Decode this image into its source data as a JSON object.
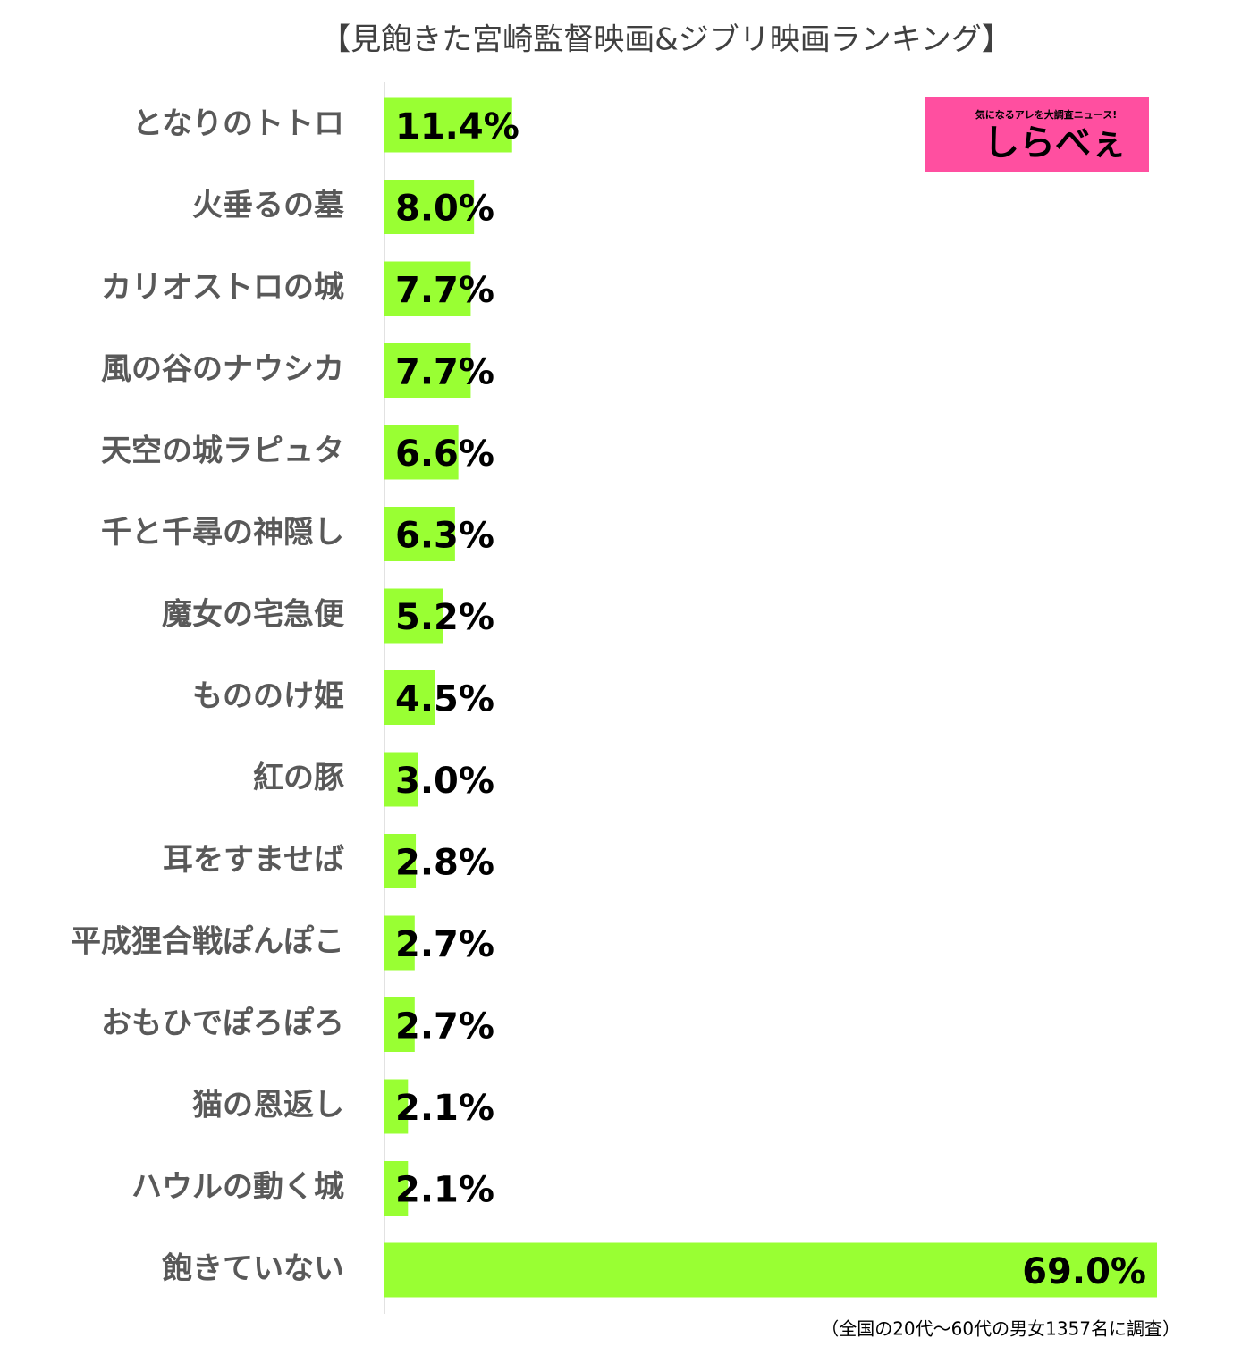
{
  "chart_data": {
    "type": "bar",
    "orientation": "horizontal",
    "title": "【見飽きた宮崎監督映画&ジブリ映画ランキング】",
    "categories": [
      "となりのトトロ",
      "火垂るの墓",
      "カリオストロの城",
      "風の谷のナウシカ",
      "天空の城ラピュタ",
      "千と千尋の神隠し",
      "魔女の宅急便",
      "もののけ姫",
      "紅の豚",
      "耳をすませば",
      "平成狸合戦ぽんぽこ",
      "おもひでぽろぽろ",
      "猫の恩返し",
      "ハウルの動く城",
      "飽きていない"
    ],
    "values": [
      11.4,
      8.0,
      7.7,
      7.7,
      6.6,
      6.3,
      5.2,
      4.5,
      3.0,
      2.8,
      2.7,
      2.7,
      2.1,
      2.1,
      69.0
    ],
    "value_labels": [
      "11.4%",
      "8.0%",
      "7.7%",
      "7.7%",
      "6.6%",
      "6.3%",
      "5.2%",
      "4.5%",
      "3.0%",
      "2.8%",
      "2.7%",
      "2.7%",
      "2.1%",
      "2.1%",
      "69.0%"
    ],
    "color": "#99ff33",
    "xlim": [
      0,
      69
    ],
    "source_note": "（全国の20代～60代の男女1357名に調査）",
    "logo_tagline": "気になるアレを大調査ニュース!",
    "logo_text": "しらべぇ",
    "logo_color": "#ff4fa0"
  }
}
